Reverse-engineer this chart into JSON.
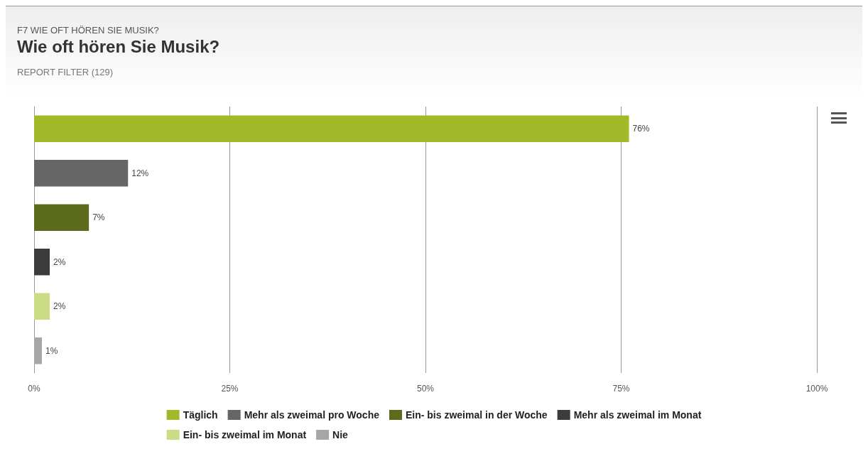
{
  "chart_data": {
    "type": "bar",
    "orientation": "horizontal",
    "stacked": true,
    "annotations": [
      "F7 WIE OFT HÖREN SIE MUSIK?"
    ],
    "title": "Wie oft hören Sie Musik?",
    "subtitle": "REPORT FILTER (129)",
    "categories": [
      null,
      null,
      null,
      null,
      null,
      null
    ],
    "series": [
      {
        "name": "Täglich",
        "color": "#a2b92a",
        "values": [
          76,
          null,
          null,
          null,
          null,
          null
        ],
        "value_labels": [
          "76%",
          null,
          null,
          null,
          null,
          null
        ]
      },
      {
        "name": "Mehr als zweimal pro Woche",
        "color": "#666666",
        "values": [
          null,
          12,
          null,
          null,
          null,
          null
        ],
        "value_labels": [
          null,
          "12%",
          null,
          null,
          null,
          null
        ]
      },
      {
        "name": "Ein- bis zweimal in der Woche",
        "color": "#5b6b1b",
        "values": [
          null,
          null,
          7,
          null,
          null,
          null
        ],
        "value_labels": [
          null,
          null,
          "7%",
          null,
          null,
          null
        ]
      },
      {
        "name": "Mehr als zweimal im Monat",
        "color": "#3b3b3b",
        "values": [
          null,
          null,
          null,
          2,
          null,
          null
        ],
        "value_labels": [
          null,
          null,
          null,
          "2%",
          null,
          null
        ]
      },
      {
        "name": "Ein- bis zweimal im Monat",
        "color": "#cadc84",
        "values": [
          null,
          null,
          null,
          null,
          2,
          null
        ],
        "value_labels": [
          null,
          null,
          null,
          null,
          "2%",
          null
        ]
      },
      {
        "name": "Nie",
        "color": "#a6a6a6",
        "values": [
          null,
          null,
          null,
          null,
          null,
          1
        ],
        "value_labels": [
          null,
          null,
          null,
          null,
          null,
          "1%"
        ]
      }
    ],
    "xlim": [
      0,
      100
    ],
    "xticks": [
      {
        "value": 0,
        "label": "0%"
      },
      {
        "value": 25,
        "label": "25%"
      },
      {
        "value": 50,
        "label": "50%"
      },
      {
        "value": 75,
        "label": "75%"
      },
      {
        "value": 100,
        "label": "100%"
      }
    ],
    "grid": "x",
    "legend": "bottom"
  }
}
